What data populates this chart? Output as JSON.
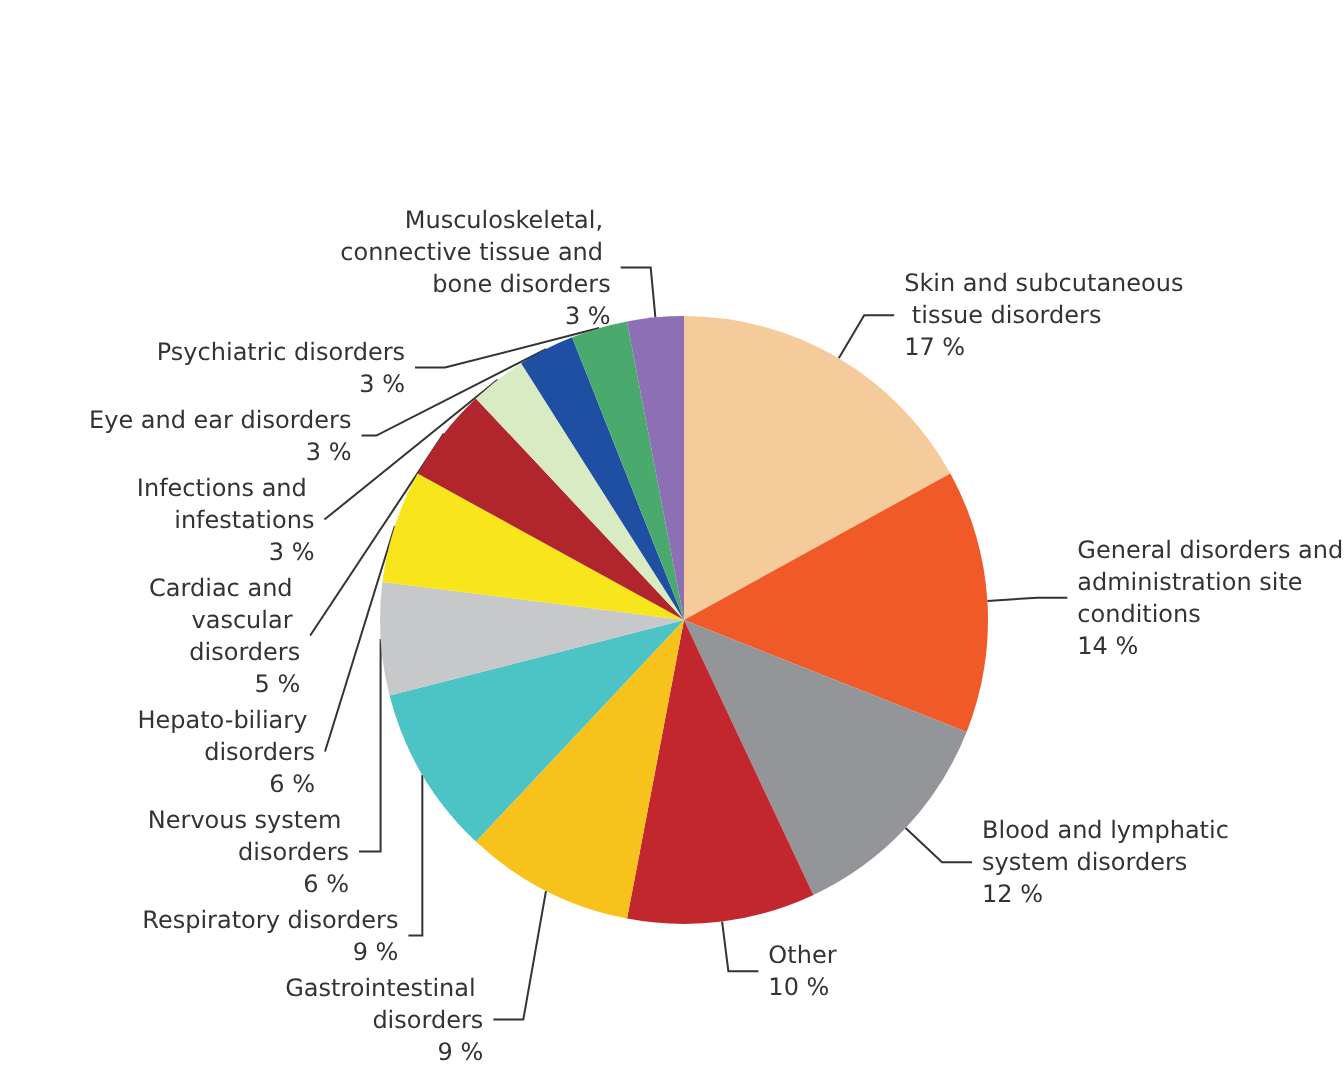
{
  "chart_data": {
    "type": "pie",
    "categories": [
      "Skin and subcutaneous tissue disorders",
      "General disorders and administration site conditions",
      "Blood and lymphatic system disorders",
      "Other",
      "Gastrointestinal disorders",
      "Respiratory disorders",
      "Nervous system disorders",
      "Hepato-biliary disorders",
      "Cardiac and vascular disorders",
      "Infections and infestations",
      "Eye and ear disorders",
      "Psychiatric disorders",
      "Musculoskeletal, connective tissue and bone disorders"
    ],
    "values": [
      17,
      14,
      12,
      10,
      9,
      9,
      6,
      6,
      5,
      3,
      3,
      3,
      3
    ],
    "value_labels": [
      "17 %",
      "14 %",
      "12 %",
      "10 %",
      "9 %",
      "9 %",
      "6 %",
      "6 %",
      "5 %",
      "3 %",
      "3 %",
      "3 %",
      "3 %"
    ],
    "colors": [
      "#f6cb9c",
      "#f05a28",
      "#939598",
      "#c1272d",
      "#f8c21d",
      "#4cc3c4",
      "#c7c8ca",
      "#f9e51c",
      "#b0262c",
      "#d8ebc3",
      "#1f4fa2",
      "#4aaa6e",
      "#8d6fb5"
    ],
    "legend": false
  }
}
